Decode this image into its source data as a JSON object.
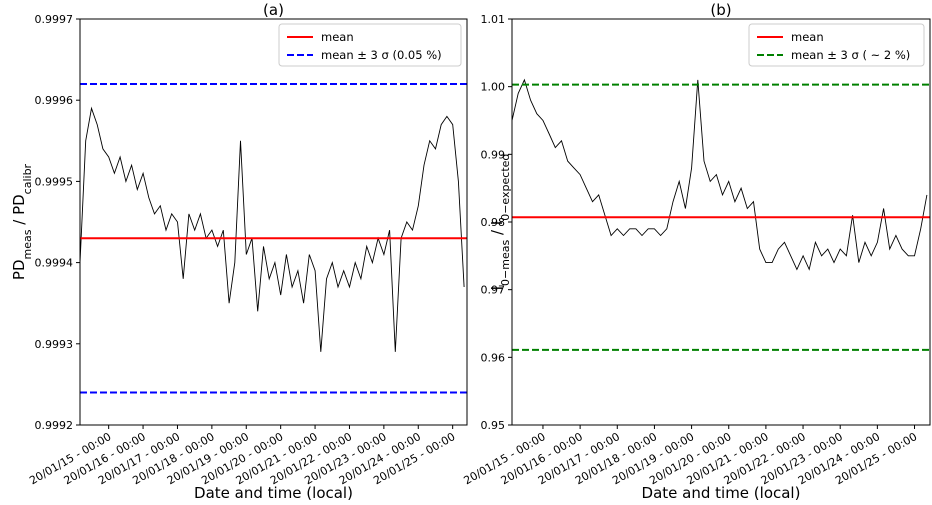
{
  "chart_data": [
    {
      "type": "line",
      "title": "(a)",
      "xlabel": "Date and time (local)",
      "ylabel": [
        {
          "text": "PD"
        },
        {
          "text": "meas",
          "sub": true
        },
        {
          "text": " / PD"
        },
        {
          "text": "calibr",
          "sub": true
        }
      ],
      "xlim": [
        "20/01/14 - 04:00",
        "20/01/25 - 10:00"
      ],
      "xticks": [
        "20/01/15 - 00:00",
        "20/01/16 - 00:00",
        "20/01/17 - 00:00",
        "20/01/18 - 00:00",
        "20/01/19 - 00:00",
        "20/01/20 - 00:00",
        "20/01/21 - 00:00",
        "20/01/22 - 00:00",
        "20/01/23 - 00:00",
        "20/01/24 - 00:00",
        "20/01/25 - 00:00"
      ],
      "ylim": [
        0.9992,
        0.9997
      ],
      "yticks": [
        0.9992,
        0.9993,
        0.9994,
        0.9995,
        0.9996,
        0.9997
      ],
      "legend": "upper right",
      "x": [
        "20/01/14 - 04:00",
        "20/01/14 - 08:00",
        "20/01/14 - 12:00",
        "20/01/14 - 16:00",
        "20/01/14 - 20:00",
        "20/01/15 - 00:00",
        "20/01/15 - 04:00",
        "20/01/15 - 08:00",
        "20/01/15 - 12:00",
        "20/01/15 - 16:00",
        "20/01/15 - 20:00",
        "20/01/16 - 00:00",
        "20/01/16 - 04:00",
        "20/01/16 - 08:00",
        "20/01/16 - 12:00",
        "20/01/16 - 16:00",
        "20/01/16 - 20:00",
        "20/01/17 - 00:00",
        "20/01/17 - 04:00",
        "20/01/17 - 08:00",
        "20/01/17 - 12:00",
        "20/01/17 - 16:00",
        "20/01/17 - 20:00",
        "20/01/18 - 00:00",
        "20/01/18 - 04:00",
        "20/01/18 - 08:00",
        "20/01/18 - 12:00",
        "20/01/18 - 16:00",
        "20/01/18 - 20:00",
        "20/01/19 - 00:00",
        "20/01/19 - 04:00",
        "20/01/19 - 08:00",
        "20/01/19 - 12:00",
        "20/01/19 - 16:00",
        "20/01/19 - 20:00",
        "20/01/20 - 00:00",
        "20/01/20 - 04:00",
        "20/01/20 - 08:00",
        "20/01/20 - 12:00",
        "20/01/20 - 16:00",
        "20/01/20 - 20:00",
        "20/01/21 - 00:00",
        "20/01/21 - 04:00",
        "20/01/21 - 08:00",
        "20/01/21 - 12:00",
        "20/01/21 - 16:00",
        "20/01/21 - 20:00",
        "20/01/22 - 00:00",
        "20/01/22 - 04:00",
        "20/01/22 - 08:00",
        "20/01/22 - 12:00",
        "20/01/22 - 16:00",
        "20/01/22 - 20:00",
        "20/01/23 - 00:00",
        "20/01/23 - 04:00",
        "20/01/23 - 08:00",
        "20/01/23 - 12:00",
        "20/01/23 - 16:00",
        "20/01/23 - 20:00",
        "20/01/24 - 00:00",
        "20/01/24 - 04:00",
        "20/01/24 - 08:00",
        "20/01/24 - 12:00",
        "20/01/24 - 16:00",
        "20/01/24 - 20:00",
        "20/01/25 - 00:00",
        "20/01/25 - 04:00",
        "20/01/25 - 08:00"
      ],
      "series": [
        {
          "color": "#000000",
          "values": [
            0.9994,
            0.99955,
            0.99959,
            0.99957,
            0.99954,
            0.99953,
            0.99951,
            0.99953,
            0.9995,
            0.99952,
            0.99949,
            0.99951,
            0.99948,
            0.99946,
            0.99947,
            0.99944,
            0.99946,
            0.99945,
            0.99938,
            0.99946,
            0.99944,
            0.99946,
            0.99943,
            0.99944,
            0.99942,
            0.99944,
            0.99935,
            0.9994,
            0.99955,
            0.99941,
            0.99943,
            0.99934,
            0.99942,
            0.99938,
            0.9994,
            0.99936,
            0.99941,
            0.99937,
            0.99939,
            0.99935,
            0.99941,
            0.99939,
            0.99929,
            0.99938,
            0.9994,
            0.99937,
            0.99939,
            0.99937,
            0.9994,
            0.99938,
            0.99942,
            0.9994,
            0.99943,
            0.99941,
            0.99944,
            0.99929,
            0.99943,
            0.99945,
            0.99944,
            0.99947,
            0.99952,
            0.99955,
            0.99954,
            0.99957,
            0.99958,
            0.99957,
            0.9995,
            0.99937
          ]
        }
      ],
      "hlines": [
        {
          "name": "mean",
          "color": "#ff0000",
          "dashed": false,
          "values": [
            0.99943
          ]
        },
        {
          "name": "mean ± 3 σ (0.05 %)",
          "color": "#0000ff",
          "dashed": true,
          "values": [
            0.99962,
            0.99924
          ]
        }
      ]
    },
    {
      "type": "line",
      "title": "(b)",
      "xlabel": "Date and time (local)",
      "ylabel": [
        {
          "text": "I"
        },
        {
          "text": "0−meas",
          "sub": true
        },
        {
          "text": " / I"
        },
        {
          "text": "0−expected",
          "sub": true
        }
      ],
      "xlim": [
        "20/01/14 - 04:00",
        "20/01/25 - 10:00"
      ],
      "xticks": [
        "20/01/15 - 00:00",
        "20/01/16 - 00:00",
        "20/01/17 - 00:00",
        "20/01/18 - 00:00",
        "20/01/19 - 00:00",
        "20/01/20 - 00:00",
        "20/01/21 - 00:00",
        "20/01/22 - 00:00",
        "20/01/23 - 00:00",
        "20/01/24 - 00:00",
        "20/01/25 - 00:00"
      ],
      "ylim": [
        0.95,
        1.01
      ],
      "yticks": [
        0.95,
        0.96,
        0.97,
        0.98,
        0.99,
        {
          "value": 1,
          "label": "1.00"
        },
        1.01
      ],
      "legend": "upper right",
      "x": [
        "20/01/14 - 04:00",
        "20/01/14 - 08:00",
        "20/01/14 - 12:00",
        "20/01/14 - 16:00",
        "20/01/14 - 20:00",
        "20/01/15 - 00:00",
        "20/01/15 - 04:00",
        "20/01/15 - 08:00",
        "20/01/15 - 12:00",
        "20/01/15 - 16:00",
        "20/01/15 - 20:00",
        "20/01/16 - 00:00",
        "20/01/16 - 04:00",
        "20/01/16 - 08:00",
        "20/01/16 - 12:00",
        "20/01/16 - 16:00",
        "20/01/16 - 20:00",
        "20/01/17 - 00:00",
        "20/01/17 - 04:00",
        "20/01/17 - 08:00",
        "20/01/17 - 12:00",
        "20/01/17 - 16:00",
        "20/01/17 - 20:00",
        "20/01/18 - 00:00",
        "20/01/18 - 04:00",
        "20/01/18 - 08:00",
        "20/01/18 - 12:00",
        "20/01/18 - 16:00",
        "20/01/18 - 20:00",
        "20/01/19 - 00:00",
        "20/01/19 - 04:00",
        "20/01/19 - 08:00",
        "20/01/19 - 12:00",
        "20/01/19 - 16:00",
        "20/01/19 - 20:00",
        "20/01/20 - 00:00",
        "20/01/20 - 04:00",
        "20/01/20 - 08:00",
        "20/01/20 - 12:00",
        "20/01/20 - 16:00",
        "20/01/20 - 20:00",
        "20/01/21 - 00:00",
        "20/01/21 - 04:00",
        "20/01/21 - 08:00",
        "20/01/21 - 12:00",
        "20/01/21 - 16:00",
        "20/01/21 - 20:00",
        "20/01/22 - 00:00",
        "20/01/22 - 04:00",
        "20/01/22 - 08:00",
        "20/01/22 - 12:00",
        "20/01/22 - 16:00",
        "20/01/22 - 20:00",
        "20/01/23 - 00:00",
        "20/01/23 - 04:00",
        "20/01/23 - 08:00",
        "20/01/23 - 12:00",
        "20/01/23 - 16:00",
        "20/01/23 - 20:00",
        "20/01/24 - 00:00",
        "20/01/24 - 04:00",
        "20/01/24 - 08:00",
        "20/01/24 - 12:00",
        "20/01/24 - 16:00",
        "20/01/24 - 20:00",
        "20/01/25 - 00:00",
        "20/01/25 - 04:00",
        "20/01/25 - 08:00"
      ],
      "series": [
        {
          "color": "#000000",
          "values": [
            0.995,
            0.999,
            1.001,
            0.998,
            0.996,
            0.995,
            0.993,
            0.991,
            0.992,
            0.989,
            0.988,
            0.987,
            0.985,
            0.983,
            0.984,
            0.981,
            0.978,
            0.979,
            0.978,
            0.979,
            0.979,
            0.978,
            0.979,
            0.979,
            0.978,
            0.979,
            0.983,
            0.986,
            0.982,
            0.988,
            1.001,
            0.989,
            0.986,
            0.987,
            0.984,
            0.986,
            0.983,
            0.985,
            0.982,
            0.983,
            0.976,
            0.974,
            0.974,
            0.976,
            0.977,
            0.975,
            0.973,
            0.975,
            0.973,
            0.977,
            0.975,
            0.976,
            0.974,
            0.976,
            0.975,
            0.981,
            0.974,
            0.977,
            0.975,
            0.977,
            0.982,
            0.976,
            0.978,
            0.976,
            0.975,
            0.975,
            0.979,
            0.984
          ]
        }
      ],
      "hlines": [
        {
          "name": "mean",
          "color": "#ff0000",
          "dashed": false,
          "values": [
            0.9807
          ]
        },
        {
          "name": "mean ± 3 σ ( ~ 2 %)",
          "color": "#008000",
          "dashed": true,
          "values": [
            1.0003,
            0.9611
          ]
        }
      ]
    }
  ]
}
